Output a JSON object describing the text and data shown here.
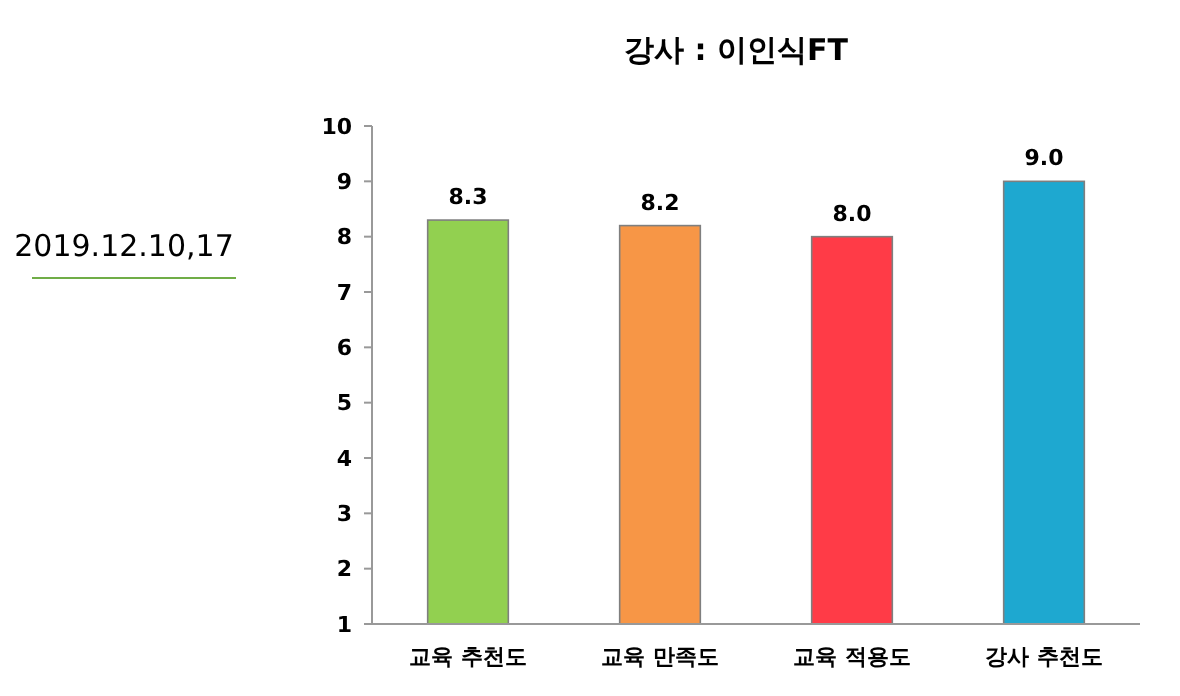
{
  "chart_data": {
    "type": "bar",
    "title": "강사 : 이인식FT",
    "categories": [
      "교육 추천도",
      "교육 만족도",
      "교육 적용도",
      "강사 추천도"
    ],
    "values": [
      8.3,
      8.2,
      8.0,
      9.0
    ],
    "colors": [
      "#92d050",
      "#f79646",
      "#ff3b47",
      "#1ea8d0"
    ],
    "value_labels": [
      "8.3",
      "8.2",
      "8.0",
      "9.0"
    ],
    "ylim": [
      1,
      10
    ],
    "yticks": [
      1,
      2,
      3,
      4,
      5,
      6,
      7,
      8,
      9,
      10
    ],
    "grid": false,
    "annotations": [
      "2019.12.10,17"
    ]
  }
}
